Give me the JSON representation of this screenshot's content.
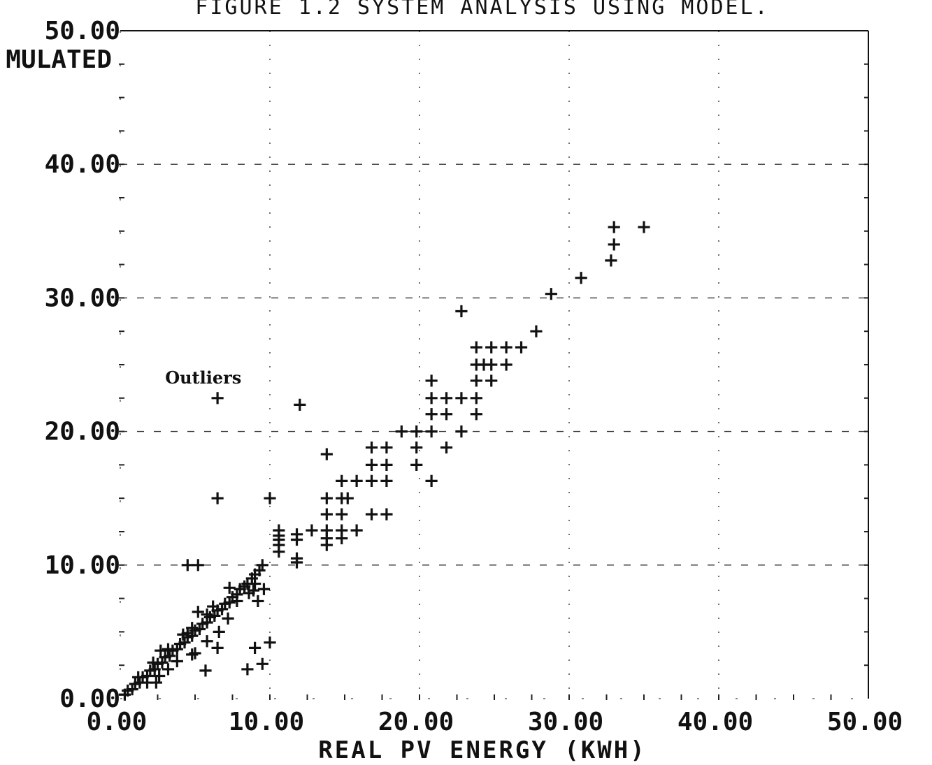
{
  "chart_data": {
    "type": "scatter",
    "title": "FIGURE 1.2 SYSTEM ANALYSIS USING MODEL.",
    "xlabel": "REAL PV ENERGY (KWH)",
    "ylabel": "MULATED",
    "xlim": [
      0,
      50
    ],
    "ylim": [
      0,
      50
    ],
    "x_ticks": [
      "0.00",
      "10.00",
      "20.00",
      "30.00",
      "40.00",
      "50.00"
    ],
    "y_ticks": [
      "0.00",
      "10.00",
      "20.00",
      "30.00",
      "40.00",
      "50.00"
    ],
    "grid": "dotted",
    "marker": "plus",
    "annotations": [
      {
        "text": "Outliers",
        "x": 3.0,
        "y": 24.0
      }
    ],
    "points": [
      [
        0.3,
        0.3
      ],
      [
        0.5,
        0.6
      ],
      [
        0.8,
        0.7
      ],
      [
        1.0,
        1.1
      ],
      [
        1.3,
        1.2
      ],
      [
        1.5,
        1.6
      ],
      [
        1.8,
        1.7
      ],
      [
        2.0,
        2.1
      ],
      [
        2.3,
        2.2
      ],
      [
        2.5,
        2.6
      ],
      [
        2.8,
        2.7
      ],
      [
        3.0,
        3.1
      ],
      [
        3.3,
        3.2
      ],
      [
        3.5,
        3.6
      ],
      [
        3.8,
        3.7
      ],
      [
        4.0,
        4.1
      ],
      [
        4.3,
        4.2
      ],
      [
        4.5,
        4.6
      ],
      [
        4.8,
        4.7
      ],
      [
        5.0,
        5.1
      ],
      [
        5.3,
        5.2
      ],
      [
        5.5,
        5.6
      ],
      [
        5.8,
        5.7
      ],
      [
        6.0,
        6.1
      ],
      [
        6.3,
        6.2
      ],
      [
        6.5,
        6.6
      ],
      [
        6.8,
        6.7
      ],
      [
        7.0,
        7.1
      ],
      [
        7.3,
        7.2
      ],
      [
        7.5,
        7.6
      ],
      [
        7.8,
        7.8
      ],
      [
        8.0,
        8.2
      ],
      [
        8.3,
        8.4
      ],
      [
        8.5,
        8.6
      ],
      [
        8.8,
        9.0
      ],
      [
        9.0,
        9.3
      ],
      [
        9.3,
        9.6
      ],
      [
        9.5,
        10.0
      ],
      [
        1.2,
        1.6
      ],
      [
        2.2,
        2.7
      ],
      [
        2.7,
        3.6
      ],
      [
        3.2,
        3.7
      ],
      [
        4.2,
        4.8
      ],
      [
        4.8,
        5.3
      ],
      [
        5.2,
        6.5
      ],
      [
        5.8,
        6.3
      ],
      [
        6.2,
        6.9
      ],
      [
        7.3,
        8.3
      ],
      [
        7.8,
        7.3
      ],
      [
        8.6,
        7.9
      ],
      [
        9.2,
        7.3
      ],
      [
        8.9,
        8.1
      ],
      [
        9.0,
        8.6
      ],
      [
        9.6,
        8.2
      ],
      [
        1.8,
        1.2
      ],
      [
        2.6,
        1.7
      ],
      [
        3.2,
        2.2
      ],
      [
        3.8,
        2.8
      ],
      [
        5.8,
        4.3
      ],
      [
        6.6,
        5.0
      ],
      [
        7.2,
        6.0
      ],
      [
        2.4,
        1.2
      ],
      [
        4.5,
        4.9
      ],
      [
        4.8,
        3.3
      ],
      [
        5.0,
        3.4
      ],
      [
        5.7,
        2.1
      ],
      [
        8.5,
        2.2
      ],
      [
        9.5,
        2.6
      ],
      [
        4.5,
        10.0
      ],
      [
        10.6,
        11.0
      ],
      [
        10.6,
        11.5
      ],
      [
        10.6,
        11.9
      ],
      [
        10.6,
        12.2
      ],
      [
        10.6,
        12.6
      ],
      [
        11.8,
        11.9
      ],
      [
        11.8,
        12.3
      ],
      [
        11.8,
        10.2
      ],
      [
        11.8,
        10.5
      ],
      [
        12.8,
        12.6
      ],
      [
        13.8,
        12.6
      ],
      [
        13.8,
        12.0
      ],
      [
        13.8,
        11.5
      ],
      [
        13.8,
        13.8
      ],
      [
        13.8,
        15.0
      ],
      [
        13.8,
        18.3
      ],
      [
        14.8,
        13.8
      ],
      [
        14.8,
        12.6
      ],
      [
        14.8,
        12.0
      ],
      [
        14.8,
        15.0
      ],
      [
        14.8,
        16.3
      ],
      [
        15.2,
        15.0
      ],
      [
        15.8,
        12.6
      ],
      [
        15.8,
        16.3
      ],
      [
        16.8,
        13.8
      ],
      [
        16.8,
        16.3
      ],
      [
        16.8,
        17.5
      ],
      [
        16.8,
        18.8
      ],
      [
        17.8,
        13.8
      ],
      [
        17.8,
        16.3
      ],
      [
        17.8,
        17.5
      ],
      [
        17.8,
        18.8
      ],
      [
        18.8,
        20.0
      ],
      [
        19.8,
        20.0
      ],
      [
        19.8,
        18.8
      ],
      [
        19.8,
        17.5
      ],
      [
        20.8,
        20.0
      ],
      [
        20.8,
        21.3
      ],
      [
        20.8,
        22.5
      ],
      [
        20.8,
        23.8
      ],
      [
        20.8,
        16.3
      ],
      [
        21.8,
        21.3
      ],
      [
        21.8,
        22.5
      ],
      [
        21.8,
        18.8
      ],
      [
        22.8,
        20.0
      ],
      [
        22.8,
        22.5
      ],
      [
        23.8,
        22.5
      ],
      [
        23.8,
        21.3
      ],
      [
        23.8,
        23.8
      ],
      [
        23.8,
        25.0
      ],
      [
        23.8,
        26.3
      ],
      [
        24.3,
        25.0
      ],
      [
        24.8,
        23.8
      ],
      [
        24.8,
        25.0
      ],
      [
        24.8,
        26.3
      ],
      [
        25.8,
        25.0
      ],
      [
        25.8,
        26.3
      ],
      [
        26.8,
        26.3
      ],
      [
        27.8,
        27.5
      ],
      [
        28.8,
        30.3
      ],
      [
        30.8,
        31.5
      ],
      [
        32.8,
        32.8
      ],
      [
        33.0,
        34.0
      ],
      [
        33.0,
        35.3
      ],
      [
        35.0,
        35.3
      ],
      [
        22.8,
        29.0
      ],
      [
        6.5,
        22.5
      ],
      [
        12.0,
        22.0
      ],
      [
        6.5,
        15.0
      ],
      [
        10.0,
        15.0
      ],
      [
        5.2,
        10.0
      ],
      [
        6.5,
        3.8
      ],
      [
        10.0,
        4.2
      ],
      [
        9.0,
        3.8
      ]
    ]
  }
}
